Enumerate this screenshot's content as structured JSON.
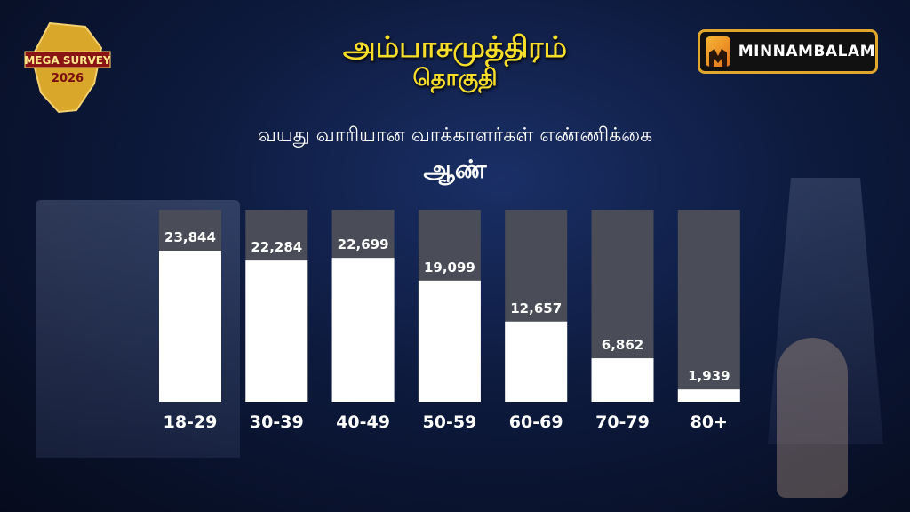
{
  "header": {
    "title": "அம்பாசமுத்திரம்",
    "subtitle": "தொகுதி",
    "logo_text_line1": "MEGA SURVEY",
    "logo_text_line2": "2026",
    "brand": "MINNAMBALAM"
  },
  "chart_heading": "வயது வாரியான வாக்காளர்கள் எண்ணிக்கை",
  "gender_label": "ஆண்",
  "colors": {
    "title": "#f7de2a",
    "bar_fill": "#ffffff",
    "bar_track": "#4a4d57",
    "brand_border": "#e0a72c"
  },
  "chart_data": {
    "type": "bar",
    "categories": [
      "18-29",
      "30-39",
      "40-49",
      "50-59",
      "60-69",
      "70-79",
      "80+"
    ],
    "values": [
      23844,
      22284,
      22699,
      19099,
      12657,
      6862,
      1939
    ],
    "value_labels": [
      "23,844",
      "22,284",
      "22,699",
      "19,099",
      "12,657",
      "6,862",
      "1,939"
    ],
    "title": "வயது வாரியான வாக்காளர்கள் எண்ணிக்கை",
    "xlabel": "",
    "ylabel": "",
    "ylim": [
      0,
      26000
    ],
    "grid": false
  }
}
